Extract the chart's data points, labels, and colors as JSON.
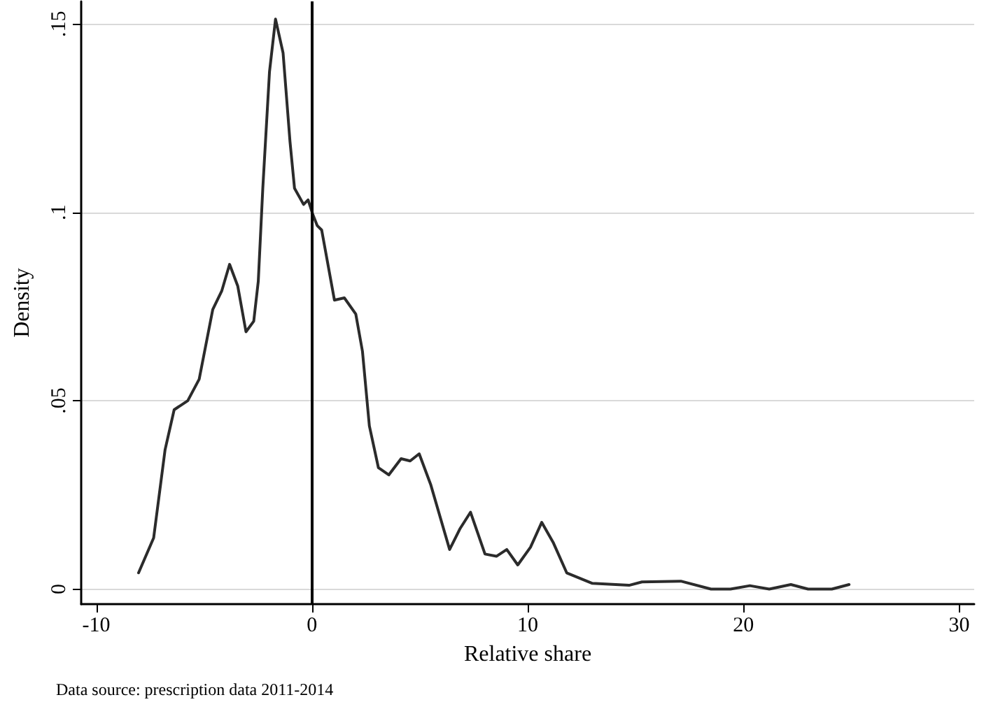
{
  "chart_data": {
    "type": "line",
    "xlabel": "Relative share",
    "ylabel": "Density",
    "annotations": [
      "Data source: prescription data 2011-2014"
    ],
    "series": [
      {
        "color": "#2b2b2b",
        "x": [
          -8.04,
          -7.34,
          -6.81,
          -6.39,
          -5.76,
          -5.23,
          -4.6,
          -4.18,
          -3.82,
          -3.44,
          -3.06,
          -2.7,
          -2.49,
          -2.28,
          -1.97,
          -1.69,
          -1.34,
          -1.02,
          -0.81,
          -0.39,
          -0.18,
          0.03,
          0.24,
          0.45,
          1.04,
          1.5,
          2.03,
          2.34,
          2.66,
          3.08,
          3.56,
          4.13,
          4.55,
          4.97,
          5.5,
          6.38,
          6.87,
          7.35,
          8.02,
          8.55,
          9.03,
          9.54,
          10.13,
          10.65,
          11.18,
          11.81,
          13.0,
          14.7,
          15.3,
          17.1,
          18.5,
          19.4,
          20.3,
          21.2,
          22.2,
          23.0,
          24.1,
          24.9
        ],
        "values": [
          0.0043,
          0.0136,
          0.037,
          0.0476,
          0.05,
          0.0557,
          0.0742,
          0.0792,
          0.0862,
          0.0804,
          0.0683,
          0.0711,
          0.0817,
          0.1064,
          0.1373,
          0.1513,
          0.1423,
          0.1188,
          0.1064,
          0.1021,
          0.1033,
          0.0996,
          0.0965,
          0.0953,
          0.0767,
          0.0773,
          0.073,
          0.0631,
          0.0433,
          0.0322,
          0.0303,
          0.0346,
          0.034,
          0.0359,
          0.0278,
          0.0105,
          0.0161,
          0.0204,
          0.0093,
          0.0087,
          0.0105,
          0.0064,
          0.0111,
          0.0177,
          0.0124,
          0.0043,
          0.0015,
          0.001,
          0.0019,
          0.0021,
          0,
          0,
          0.0009,
          0,
          0.0012,
          0,
          0,
          0.0012
        ]
      }
    ],
    "xlim": [
      -10.7,
      30.7
    ],
    "xticks": [
      -10,
      0,
      10,
      20,
      30
    ],
    "ylim": [
      -0.004,
      0.156
    ],
    "yticks": [
      {
        "value": 0,
        "label": "0"
      },
      {
        "value": 0.05,
        "label": ".05"
      },
      {
        "value": 0.1,
        "label": ".1"
      },
      {
        "value": 0.15,
        "label": ".15"
      }
    ],
    "grid": "y",
    "marker": "none",
    "line_style": "solid",
    "ref_lines": [
      {
        "axis": "x",
        "value": 0,
        "color": "#000000",
        "line_style": "solid"
      }
    ]
  }
}
